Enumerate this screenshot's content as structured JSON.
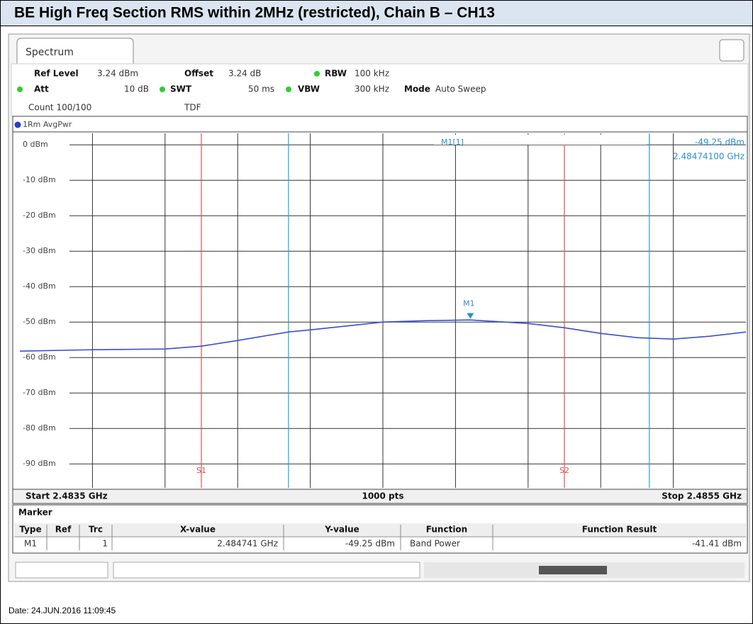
{
  "header": {
    "title": "BE High Freq Section RMS within 2MHz (restricted), Chain B – CH13"
  },
  "tab": "Spectrum",
  "settings": {
    "ref_level": {
      "label": "Ref Level",
      "value": "3.24 dBm"
    },
    "offset": {
      "label": "Offset",
      "value": "3.24 dB"
    },
    "rbw": {
      "label": "RBW",
      "value": "100 kHz"
    },
    "att": {
      "label": "Att",
      "value": "10 dB"
    },
    "swt": {
      "label": "SWT",
      "value": "50 ms"
    },
    "vbw": {
      "label": "VBW",
      "value": "300 kHz"
    },
    "mode": {
      "label": "Mode",
      "value": "Auto Sweep"
    },
    "count": "Count 100/100",
    "tdf": "TDF"
  },
  "chart_data": {
    "type": "line",
    "trace_label": "1Rm AvgPwr",
    "x": [
      2.4835,
      2.4837,
      2.4839,
      2.484,
      2.4841,
      2.48424,
      2.4843,
      2.4845,
      2.48462,
      2.48474,
      2.4849,
      2.485,
      2.4851,
      2.4852,
      2.4853,
      2.4854,
      2.4855
    ],
    "series": [
      {
        "name": "1Rm AvgPwr",
        "color": "#3a4fd0",
        "values": [
          -58.2,
          -57.8,
          -57.6,
          -56.8,
          -55.2,
          -52.8,
          -52.2,
          -50.0,
          -49.6,
          -49.4,
          -50.4,
          -51.6,
          -53.2,
          -54.4,
          -54.8,
          -54.0,
          -52.8
        ]
      }
    ],
    "xlim": [
      2.4835,
      2.4855
    ],
    "ylim": [
      -96.76,
      3.24
    ],
    "yticks": [
      {
        "value": 0,
        "label": "0 dBm"
      },
      {
        "value": -10,
        "label": "-10 dBm"
      },
      {
        "value": -20,
        "label": "-20 dBm"
      },
      {
        "value": -30,
        "label": "-30 dBm"
      },
      {
        "value": -40,
        "label": "-40 dBm"
      },
      {
        "value": -50,
        "label": "-50 dBm"
      },
      {
        "value": -60,
        "label": "-60 dBm"
      },
      {
        "value": -70,
        "label": "-70 dBm"
      },
      {
        "value": -80,
        "label": "-80 dBm"
      },
      {
        "value": -90,
        "label": "-90 dBm"
      }
    ],
    "grid": true,
    "lines": [
      {
        "x": 2.484,
        "label": "S1",
        "color": "#e05050"
      },
      {
        "x": 2.485,
        "label": "S2",
        "color": "#e05050"
      },
      {
        "x": 2.48424,
        "color": "#2aa0d8"
      },
      {
        "x": 2.485234,
        "color": "#2aa0d8"
      }
    ],
    "marker": {
      "label": "M1",
      "x": 2.484741,
      "y": -49.25,
      "color": "#2a8fd0"
    },
    "readout": {
      "name": "M1[1]",
      "level": "-49.25 dBm",
      "freq": "2.48474100 GHz"
    },
    "start": "Start 2.4835 GHz",
    "points": "1000 pts",
    "stop": "Stop 2.4855 GHz"
  },
  "table": {
    "title": "Marker",
    "columns": [
      "Type",
      "Ref",
      "Trc",
      "X-value",
      "Y-value",
      "Function",
      "Function Result"
    ],
    "row": {
      "type": "M1",
      "trc": "1",
      "x_value": "2.484741 GHz",
      "y_value": "-49.25 dBm",
      "function": "Band Power",
      "result": "-41.41 dBm"
    }
  },
  "date": "Date: 24.JUN.2016 11:09:45"
}
